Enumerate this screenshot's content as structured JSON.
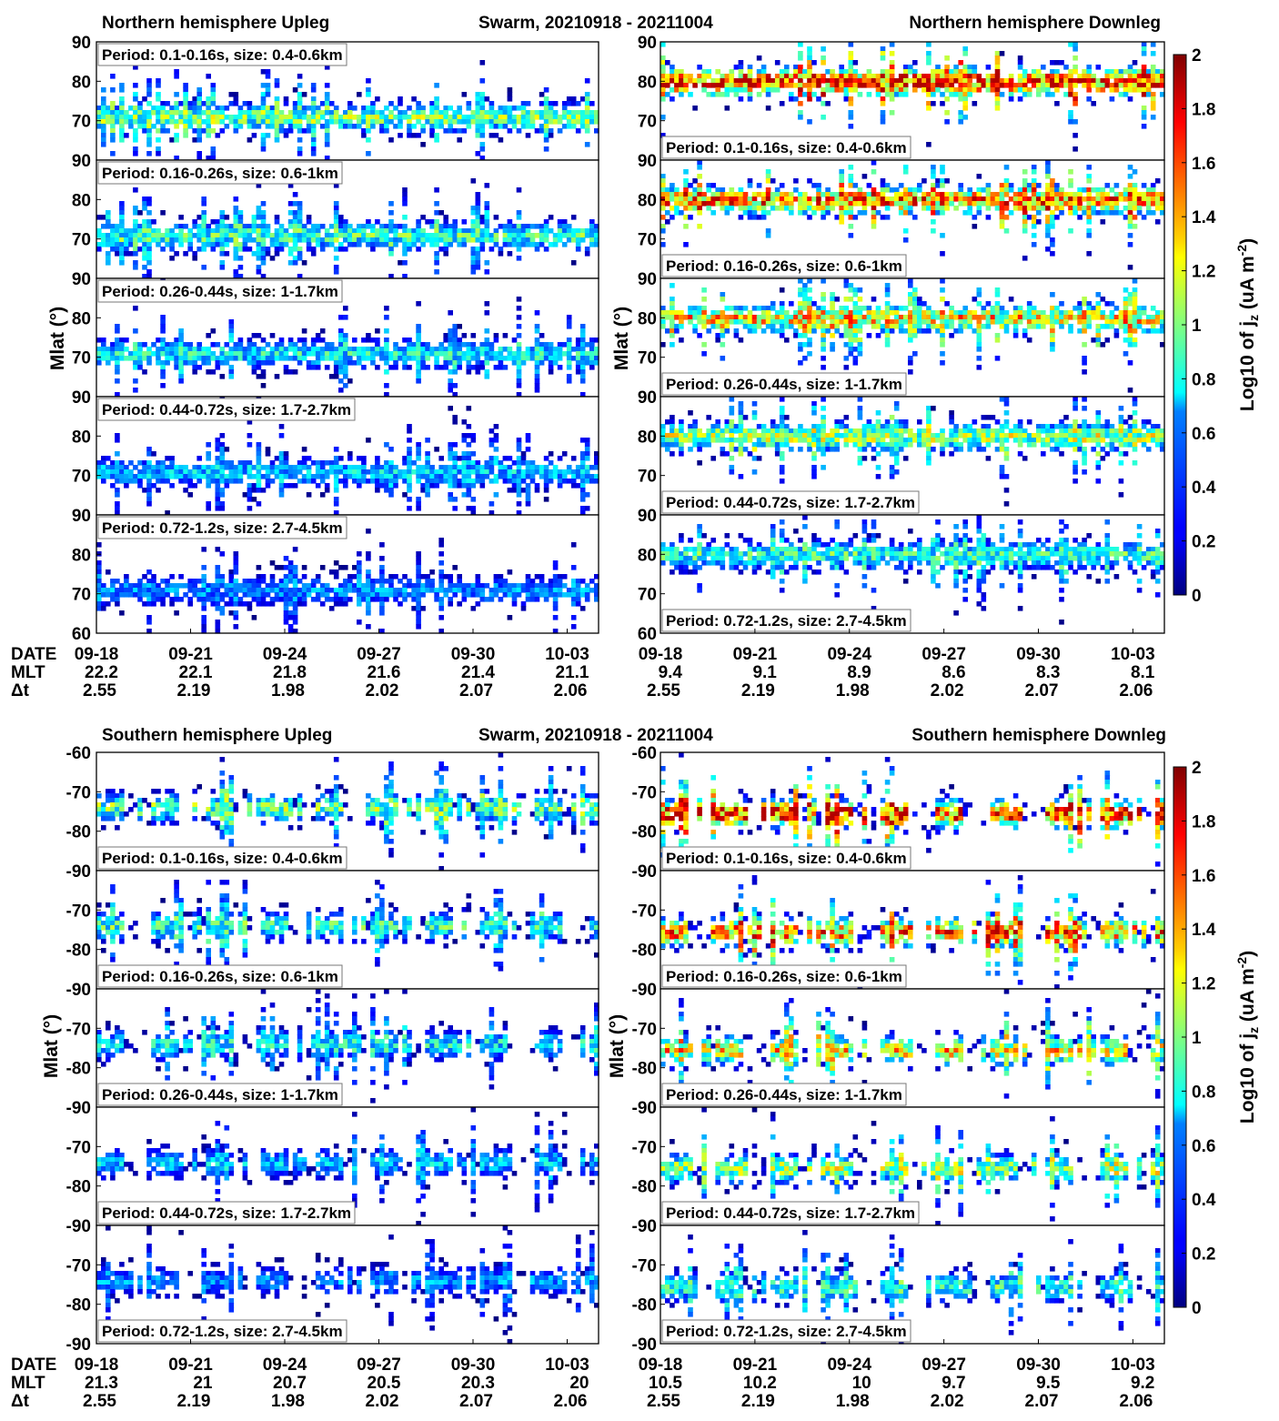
{
  "chart_data": [
    {
      "type": "heatmap",
      "title_left": "Northern hemisphere   Upleg",
      "title_center": "Swarm,  20210918 - 20211004",
      "ylabel": "Mlat (°)",
      "ylim": [
        60,
        90
      ],
      "yticks": [
        "60",
        "70",
        "80",
        "90"
      ],
      "xaxis_rows": {
        "DATE": [
          "09-18",
          "09-21",
          "09-24",
          "09-27",
          "09-30",
          "10-03"
        ],
        "MLT": [
          "22.2",
          "22.1",
          "21.8",
          "21.6",
          "21.4",
          "21.1"
        ],
        "Δt": [
          "2.55",
          "2.19",
          "1.98",
          "2.02",
          "2.07",
          "2.06"
        ]
      },
      "xaxis_row_labels": [
        "DATE",
        "MLT",
        "Δt"
      ],
      "panels": [
        "Period: 0.1-0.16s, size: 0.4-0.6km",
        "Period: 0.16-0.26s, size: 0.6-1km",
        "Period: 0.26-0.44s, size: 1-1.7km",
        "Period: 0.44-0.72s, size: 1.7-2.7km",
        "Period: 0.72-1.2s, size: 2.7-4.5km"
      ]
    },
    {
      "type": "heatmap",
      "title_right": "Northern hemisphere   Downleg",
      "ylabel": "Mlat (°)",
      "ylim": [
        60,
        90
      ],
      "yticks": [
        "60",
        "70",
        "80",
        "90"
      ],
      "xaxis_rows": {
        "DATE": [
          "09-18",
          "09-21",
          "09-24",
          "09-27",
          "09-30",
          "10-03"
        ],
        "MLT": [
          "9.4",
          "9.1",
          "8.9",
          "8.6",
          "8.3",
          "8.1"
        ],
        "Δt": [
          "2.55",
          "2.19",
          "1.98",
          "2.02",
          "2.07",
          "2.06"
        ]
      },
      "panels": [
        "Period: 0.1-0.16s, size: 0.4-0.6km",
        "Period: 0.16-0.26s, size: 0.6-1km",
        "Period: 0.26-0.44s, size: 1-1.7km",
        "Period: 0.44-0.72s, size: 1.7-2.7km",
        "Period: 0.72-1.2s, size: 2.7-4.5km"
      ]
    },
    {
      "type": "heatmap",
      "title_left": "Southern hemisphere   Upleg",
      "title_center": "Swarm,  20210918 - 20211004",
      "ylabel": "Mlat (°)",
      "ylim": [
        -90,
        -60
      ],
      "yticks": [
        "-60",
        "-70",
        "-80",
        "-90"
      ],
      "xaxis_rows": {
        "DATE": [
          "09-18",
          "09-21",
          "09-24",
          "09-27",
          "09-30",
          "10-03"
        ],
        "MLT": [
          "21.3",
          "21",
          "20.7",
          "20.5",
          "20.3",
          "20"
        ],
        "Δt": [
          "2.55",
          "2.19",
          "1.98",
          "2.02",
          "2.07",
          "2.06"
        ]
      },
      "panels": [
        "Period: 0.1-0.16s, size: 0.4-0.6km",
        "Period: 0.16-0.26s, size: 0.6-1km",
        "Period: 0.26-0.44s, size: 1-1.7km",
        "Period: 0.44-0.72s, size: 1.7-2.7km",
        "Period: 0.72-1.2s, size: 2.7-4.5km"
      ]
    },
    {
      "type": "heatmap",
      "title_right": "Southern hemisphere   Downleg",
      "ylabel": "Mlat (°)",
      "ylim": [
        -90,
        -60
      ],
      "yticks": [
        "-60",
        "-70",
        "-80",
        "-90"
      ],
      "xaxis_rows": {
        "DATE": [
          "09-18",
          "09-21",
          "09-24",
          "09-27",
          "09-30",
          "10-03"
        ],
        "MLT": [
          "10.5",
          "10.2",
          "10",
          "9.7",
          "9.5",
          "9.2"
        ],
        "Δt": [
          "2.55",
          "2.19",
          "1.98",
          "2.02",
          "2.07",
          "2.06"
        ]
      },
      "panels": [
        "Period: 0.1-0.16s, size: 0.4-0.6km",
        "Period: 0.16-0.26s, size: 0.6-1km",
        "Period: 0.26-0.44s, size: 1-1.7km",
        "Period: 0.44-0.72s, size: 1.7-2.7km",
        "Period: 0.72-1.2s, size: 2.7-4.5km"
      ]
    }
  ],
  "colorbar": {
    "label": "Log10 of j_z (uA m^-2)",
    "label_main": "Log10 of j",
    "label_sub": "z",
    "label_unit": " (uA m",
    "label_sup": "-2",
    "label_close": ")",
    "range": [
      0,
      2
    ],
    "ticks": [
      "0",
      "0.2",
      "0.4",
      "0.6",
      "0.8",
      "1",
      "1.2",
      "1.4",
      "1.6",
      "1.8",
      "2"
    ],
    "colormap": "jet"
  }
}
